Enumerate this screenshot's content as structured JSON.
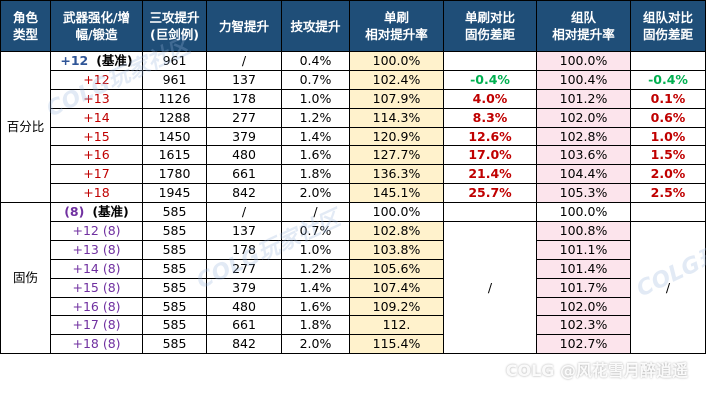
{
  "headers": {
    "role_type": "角色\n类型",
    "weapon": "武器强化/增\n幅/锻造",
    "three_atk": "三攻提升\n(巨剑例)",
    "str_int": "力智提升",
    "skill_atk": "技攻提升",
    "solo_rate": "单刷\n相对提升率",
    "solo_diff": "单刷对比\n固伤差距",
    "team_rate": "组队\n相对提升率",
    "team_diff": "组队对比\n固伤差距"
  },
  "groups": {
    "percent": "百分比",
    "fixed": "固伤"
  },
  "percent_rows": [
    {
      "weapon": "+12",
      "tag": "(基准)",
      "three": "961",
      "stat": "/",
      "skill": "0.4%",
      "solo": "100.0%",
      "solo_diff": "",
      "team": "100.0%",
      "team_diff": ""
    },
    {
      "weapon": "+12",
      "tag": "",
      "three": "961",
      "stat": "137",
      "skill": "0.7%",
      "solo": "102.4%",
      "solo_diff": "-0.4%",
      "team": "100.4%",
      "team_diff": "-0.4%"
    },
    {
      "weapon": "+13",
      "tag": "",
      "three": "1126",
      "stat": "178",
      "skill": "1.0%",
      "solo": "107.9%",
      "solo_diff": "4.0%",
      "team": "101.2%",
      "team_diff": "0.1%"
    },
    {
      "weapon": "+14",
      "tag": "",
      "three": "1288",
      "stat": "277",
      "skill": "1.2%",
      "solo": "114.3%",
      "solo_diff": "8.3%",
      "team": "102.0%",
      "team_diff": "0.6%"
    },
    {
      "weapon": "+15",
      "tag": "",
      "three": "1450",
      "stat": "379",
      "skill": "1.4%",
      "solo": "120.9%",
      "solo_diff": "12.6%",
      "team": "102.8%",
      "team_diff": "1.0%"
    },
    {
      "weapon": "+16",
      "tag": "",
      "three": "1615",
      "stat": "480",
      "skill": "1.6%",
      "solo": "127.7%",
      "solo_diff": "17.0%",
      "team": "103.6%",
      "team_diff": "1.5%"
    },
    {
      "weapon": "+17",
      "tag": "",
      "three": "1780",
      "stat": "661",
      "skill": "1.8%",
      "solo": "136.3%",
      "solo_diff": "21.4%",
      "team": "104.4%",
      "team_diff": "2.0%"
    },
    {
      "weapon": "+18",
      "tag": "",
      "three": "1945",
      "stat": "842",
      "skill": "2.0%",
      "solo": "145.1%",
      "solo_diff": "25.7%",
      "team": "105.3%",
      "team_diff": "2.5%"
    }
  ],
  "fixed_rows": [
    {
      "weapon": "(8)",
      "tag": "(基准)",
      "three": "585",
      "stat": "/",
      "skill": "/",
      "solo": "100.0%",
      "team": "100.0%"
    },
    {
      "weapon": "+12 (8)",
      "tag": "",
      "three": "585",
      "stat": "137",
      "skill": "0.7%",
      "solo": "102.8%",
      "team": "100.8%"
    },
    {
      "weapon": "+13 (8)",
      "tag": "",
      "three": "585",
      "stat": "178",
      "skill": "1.0%",
      "solo": "103.8%",
      "team": "101.1%"
    },
    {
      "weapon": "+14 (8)",
      "tag": "",
      "three": "585",
      "stat": "277",
      "skill": "1.2%",
      "solo": "105.6%",
      "team": "101.4%"
    },
    {
      "weapon": "+15 (8)",
      "tag": "",
      "three": "585",
      "stat": "379",
      "skill": "1.4%",
      "solo": "107.4%",
      "team": "101.7%"
    },
    {
      "weapon": "+16 (8)",
      "tag": "",
      "three": "585",
      "stat": "480",
      "skill": "1.6%",
      "solo": "109.2%",
      "team": "102.0%"
    },
    {
      "weapon": "+17 (8)",
      "tag": "",
      "three": "585",
      "stat": "661",
      "skill": "1.8%",
      "solo": "112.",
      "team": "102.3%"
    },
    {
      "weapon": "+18 (8)",
      "tag": "",
      "three": "585",
      "stat": "842",
      "skill": "2.0%",
      "solo": "115.4%",
      "team": "102.7%"
    }
  ],
  "fixed_diff": {
    "solo": "/",
    "team": "/"
  },
  "watermark": {
    "text": "COLG玩家社区",
    "logo": "COLG @风花雪月醉逍遥"
  }
}
